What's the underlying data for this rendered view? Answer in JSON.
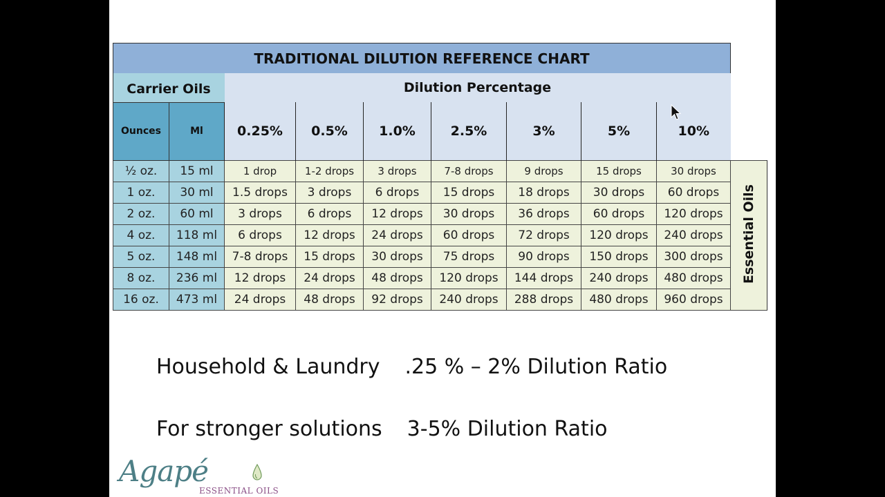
{
  "chart": {
    "title": "TRADITIONAL DILUTION REFERENCE CHART",
    "dilution_header": "Dilution Percentage",
    "carrier_header": "Carrier Oils",
    "sub_ounces": "Ounces",
    "sub_ml": "Ml",
    "side_label": "Essential Oils",
    "percentages": [
      "0.25%",
      "0.5%",
      "1.0%",
      "2.5%",
      "3%",
      "5%",
      "10%"
    ],
    "rows": [
      {
        "oz": "½ oz.",
        "ml": "15 ml",
        "drops": [
          "1 drop",
          "1-2 drops",
          "3 drops",
          "7-8 drops",
          "9 drops",
          "15 drops",
          "30 drops"
        ]
      },
      {
        "oz": "1 oz.",
        "ml": "30 ml",
        "drops": [
          "1.5 drops",
          "3 drops",
          "6 drops",
          "15 drops",
          "18 drops",
          "30 drops",
          "60 drops"
        ]
      },
      {
        "oz": "2 oz.",
        "ml": "60 ml",
        "drops": [
          "3 drops",
          "6 drops",
          "12 drops",
          "30 drops",
          "36 drops",
          "60 drops",
          "120 drops"
        ]
      },
      {
        "oz": "4 oz.",
        "ml": "118 ml",
        "drops": [
          "6 drops",
          "12 drops",
          "24 drops",
          "60 drops",
          "72 drops",
          "120 drops",
          "240 drops"
        ]
      },
      {
        "oz": "5 oz.",
        "ml": "148 ml",
        "drops": [
          "7-8 drops",
          "15 drops",
          "30 drops",
          "75 drops",
          "90 drops",
          "150 drops",
          "300 drops"
        ]
      },
      {
        "oz": "8 oz.",
        "ml": "236 ml",
        "drops": [
          "12 drops",
          "24 drops",
          "48 drops",
          "120 drops",
          "144 drops",
          "240 drops",
          "480 drops"
        ]
      },
      {
        "oz": "16 oz.",
        "ml": "473 ml",
        "drops": [
          "24 drops",
          "48 drops",
          "92 drops",
          "240 drops",
          "288 drops",
          "480 drops",
          "960 drops"
        ]
      }
    ]
  },
  "notes": {
    "line1_label": "Household & Laundry",
    "line1_value": ".25 % – 2% Dilution Ratio",
    "line2_label": "For stronger solutions",
    "line2_value": "3-5% Dilution Ratio"
  },
  "logo": {
    "name": "Agapé",
    "tagline": "ESSENTIAL OILS"
  },
  "colors": {
    "title_bar": "#8fb0d8",
    "header_bg": "#d8e2f0",
    "carrier_bg": "#a8d3e0",
    "sub_header_bg": "#5fa8c8",
    "drop_bg": "#eef2dc",
    "logo_teal": "#4d7f86",
    "logo_purple": "#8a4f86"
  }
}
